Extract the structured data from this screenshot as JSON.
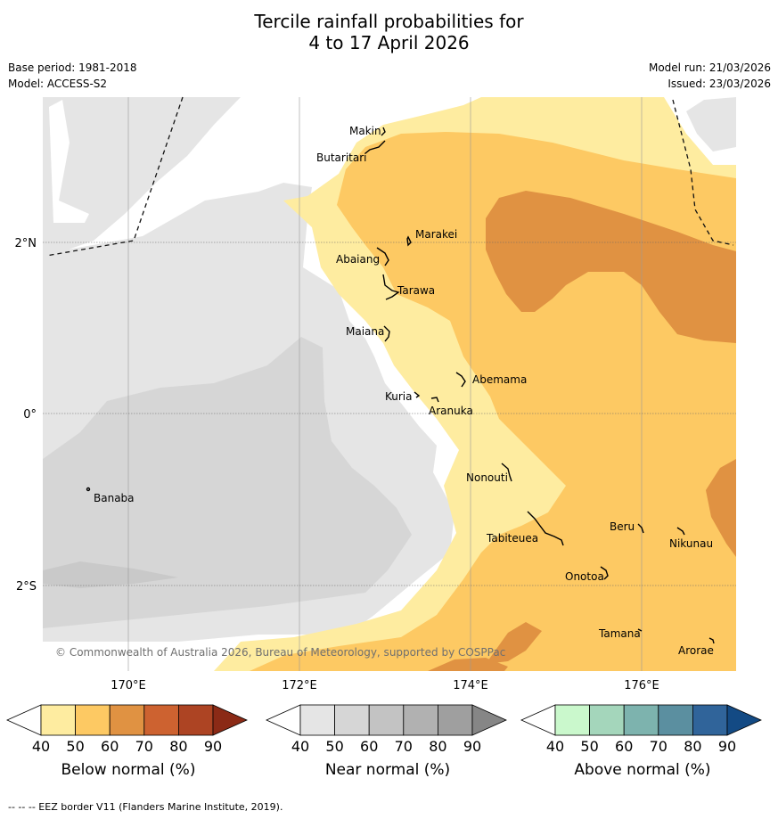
{
  "title": {
    "line1": "Tercile rainfall probabilities for",
    "line2": "4 to 17 April 2026"
  },
  "meta": {
    "base_period": "Base period: 1981-2018",
    "model": "Model: ACCESS-S2",
    "model_run": "Model run: 21/03/2026",
    "issued": "Issued: 23/03/2026"
  },
  "map": {
    "copyright": "© Commonwealth of Australia 2026, Bureau of Meteorology, supported by COSPPac",
    "x_ticks": [
      "170°E",
      "172°E",
      "174°E",
      "176°E"
    ],
    "y_ticks": [
      "2°N",
      "0°",
      "2°S"
    ],
    "places": {
      "makin": "Makin",
      "butaritari": "Butaritari",
      "marakei": "Marakei",
      "abaiang": "Abaiang",
      "tarawa": "Tarawa",
      "maiana": "Maiana",
      "abemama": "Abemama",
      "kuria": "Kuria",
      "aranuka": "Aranuka",
      "banaba": "Banaba",
      "nonouti": "Nonouti",
      "tabiteuea": "Tabiteuea",
      "beru": "Beru",
      "nikunau": "Nikunau",
      "onotoa": "Onotoa",
      "tamana": "Tamana",
      "arorae": "Arorae"
    }
  },
  "colorbars": [
    {
      "title": "Below normal (%)",
      "ticks": [
        "40",
        "50",
        "60",
        "70",
        "80",
        "90"
      ],
      "colors": [
        "#ffffff",
        "#feeca0",
        "#fdc963",
        "#e09242",
        "#cd6230",
        "#ad4423",
        "#8b2a16"
      ]
    },
    {
      "title": "Near normal (%)",
      "ticks": [
        "40",
        "50",
        "60",
        "70",
        "80",
        "90"
      ],
      "colors": [
        "#ffffff",
        "#e5e5e5",
        "#d6d6d6",
        "#c3c3c3",
        "#b1b1b1",
        "#9f9f9f",
        "#868686"
      ]
    },
    {
      "title": "Above normal (%)",
      "ticks": [
        "40",
        "50",
        "60",
        "70",
        "80",
        "90"
      ],
      "colors": [
        "#ffffff",
        "#caf8cc",
        "#a4d6bb",
        "#7db3ae",
        "#5b8fa0",
        "#30649a",
        "#134a84"
      ]
    }
  ],
  "footer": "--  --  -- EEZ border V11 (Flanders Marine Institute, 2019)."
}
